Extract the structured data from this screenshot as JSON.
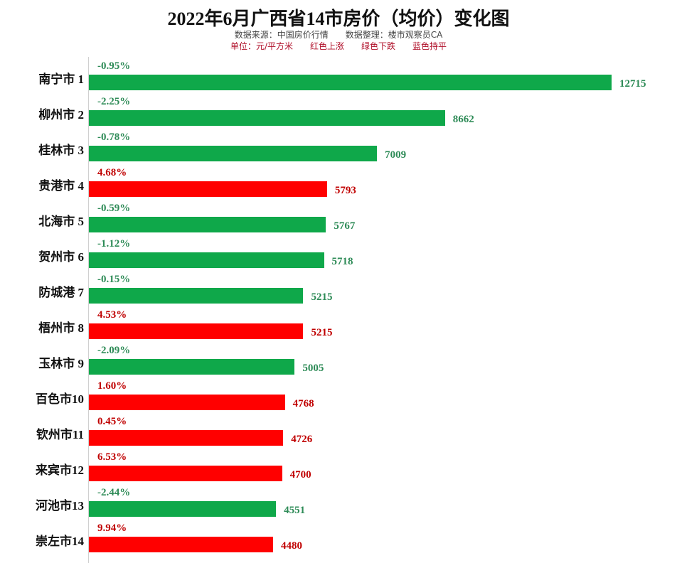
{
  "title": "2022年6月广西省14市房价（均价）变化图",
  "source": "数据来源：中国房价行情",
  "compiler": "数据整理：楼市观察员CA",
  "unit": "单位：元/平方米",
  "legend_red": "红色上涨",
  "legend_green": "绿色下跌",
  "legend_blue": "蓝色持平",
  "colors": {
    "up_bar": "#ff0000",
    "down_bar": "#0fa84a",
    "up_text": "#c00000",
    "down_text": "#2e8b57"
  },
  "chart_data": {
    "type": "bar",
    "orientation": "horizontal",
    "title": "2022年6月广西省14市房价（均价）变化图",
    "categories": [
      "南宁市 1",
      "柳州市 2",
      "桂林市 3",
      "贵港市 4",
      "北海市 5",
      "贺州市 6",
      "防城港 7",
      "梧州市 8",
      "玉林市 9",
      "百色市10",
      "钦州市11",
      "来宾市12",
      "河池市13",
      "崇左市14"
    ],
    "values": [
      12715,
      8662,
      7009,
      5793,
      5767,
      5718,
      5215,
      5215,
      5005,
      4768,
      4726,
      4700,
      4551,
      4480
    ],
    "changes": [
      "-0.95%",
      "-2.25%",
      "-0.78%",
      "4.68%",
      "-0.59%",
      "-1.12%",
      "-0.15%",
      "4.53%",
      "-2.09%",
      "1.60%",
      "0.45%",
      "6.53%",
      "-2.44%",
      "9.94%"
    ],
    "xlim": [
      0,
      12715
    ],
    "grid": false
  }
}
